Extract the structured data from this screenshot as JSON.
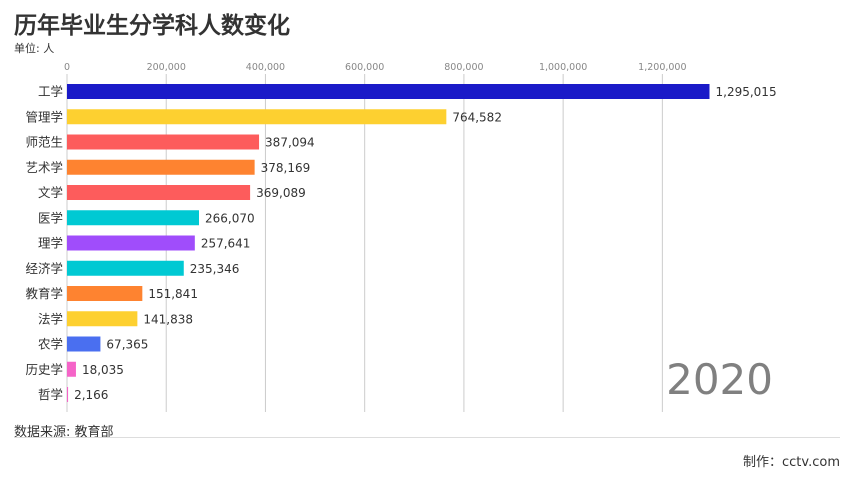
{
  "title": "历年毕业生分学科人数变化",
  "unit_label": "单位: 人",
  "source": "数据来源: 教育部",
  "credit": "制作：cctv.com",
  "chart_data": {
    "type": "bar",
    "orientation": "horizontal",
    "year": "2020",
    "title": "历年毕业生分学科人数变化",
    "xlim": [
      0,
      1300000
    ],
    "ticks": [
      0,
      200000,
      400000,
      600000,
      800000,
      1000000,
      1200000
    ],
    "tick_labels": [
      "0",
      "200,000",
      "400,000",
      "600,000",
      "800,000",
      "1,000,000",
      "1,200,000"
    ],
    "grid": true,
    "categories": [
      "工学",
      "管理学",
      "师范生",
      "艺术学",
      "文学",
      "医学",
      "理学",
      "经济学",
      "教育学",
      "法学",
      "农学",
      "历史学",
      "哲学"
    ],
    "values": [
      1295015,
      764582,
      387094,
      378169,
      369089,
      266070,
      257641,
      235346,
      151841,
      141838,
      67365,
      18035,
      2166
    ],
    "value_labels": [
      "1,295,015",
      "764,582",
      "387,094",
      "378,169",
      "369,089",
      "266,070",
      "257,641",
      "235,346",
      "151,841",
      "141,838",
      "67,365",
      "18,035",
      "2,166"
    ],
    "colors": [
      "#1a1ac8",
      "#fdd030",
      "#fd5c5c",
      "#fe8330",
      "#fd5c5c",
      "#00c9d3",
      "#a04dfb",
      "#00c9d3",
      "#fe8330",
      "#fdd030",
      "#4a6ff0",
      "#f564c8",
      "#f564c8"
    ]
  }
}
